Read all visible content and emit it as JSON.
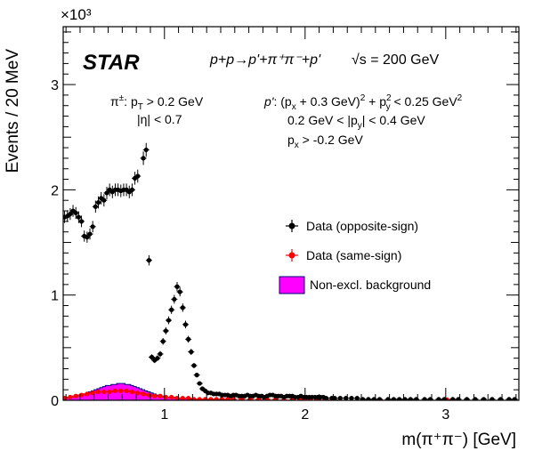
{
  "chart_data": {
    "type": "scatter",
    "experiment_label": "STAR",
    "process_label": "p+p→p'+π⁺π⁻+p'",
    "sqrt_s_label": "√s = 200 GeV",
    "pion_cuts": [
      "π±:  p_T > 0.2 GeV",
      "|η| < 0.7"
    ],
    "proton_cuts": [
      "p': (p_x + 0.3 GeV)² + p_y² < 0.25 GeV²",
      "0.2 GeV < |p_y| < 0.4 GeV",
      "p_x > -0.2 GeV"
    ],
    "xlabel": "m(π⁺π⁻) [GeV]",
    "ylabel": "Events / 20 MeV",
    "y_multiplier_label": "×10³",
    "xlim": [
      0.28,
      3.52
    ],
    "ylim": [
      0,
      3.55
    ],
    "x_ticks": [
      1,
      2,
      3
    ],
    "y_ticks": [
      0,
      1,
      2,
      3
    ],
    "grid": false,
    "legend_position": "middle-right",
    "legend": [
      "Data (opposite-sign)",
      "Data (same-sign)",
      "Non-excl. background"
    ],
    "colors": {
      "opposite_sign": "#000000",
      "same_sign": "#ff0000",
      "background_fill": "#ff00ff",
      "background_edge": "#000080"
    },
    "series": [
      {
        "name": "Data (opposite-sign)",
        "points": [
          [
            0.29,
            1.74
          ],
          [
            0.31,
            1.75
          ],
          [
            0.33,
            1.77
          ],
          [
            0.35,
            1.8
          ],
          [
            0.37,
            1.78
          ],
          [
            0.39,
            1.74
          ],
          [
            0.41,
            1.7
          ],
          [
            0.43,
            1.56
          ],
          [
            0.45,
            1.55
          ],
          [
            0.47,
            1.58
          ],
          [
            0.49,
            1.65
          ],
          [
            0.51,
            1.84
          ],
          [
            0.53,
            1.88
          ],
          [
            0.55,
            1.92
          ],
          [
            0.57,
            1.9
          ],
          [
            0.59,
            1.97
          ],
          [
            0.61,
            2.0
          ],
          [
            0.63,
            1.98
          ],
          [
            0.65,
            2.0
          ],
          [
            0.67,
            2.0
          ],
          [
            0.69,
            1.99
          ],
          [
            0.71,
            2.0
          ],
          [
            0.73,
            2.0
          ],
          [
            0.75,
            1.98
          ],
          [
            0.77,
            2.0
          ],
          [
            0.79,
            2.11
          ],
          [
            0.81,
            2.13
          ],
          [
            0.85,
            2.3
          ],
          [
            0.87,
            2.38
          ],
          [
            0.89,
            1.33
          ],
          [
            0.91,
            0.41
          ],
          [
            0.93,
            0.38
          ],
          [
            0.95,
            0.4
          ],
          [
            0.97,
            0.44
          ],
          [
            0.99,
            0.56
          ],
          [
            1.01,
            0.66
          ],
          [
            1.03,
            0.76
          ],
          [
            1.05,
            0.86
          ],
          [
            1.07,
            0.96
          ],
          [
            1.09,
            1.08
          ],
          [
            1.11,
            1.03
          ],
          [
            1.13,
            0.88
          ],
          [
            1.15,
            0.72
          ],
          [
            1.17,
            0.58
          ],
          [
            1.19,
            0.46
          ],
          [
            1.21,
            0.33
          ],
          [
            1.23,
            0.24
          ],
          [
            1.25,
            0.16
          ],
          [
            1.27,
            0.11
          ],
          [
            1.29,
            0.09
          ],
          [
            1.31,
            0.07
          ],
          [
            1.33,
            0.07
          ],
          [
            1.35,
            0.06
          ],
          [
            1.37,
            0.06
          ],
          [
            1.39,
            0.06
          ],
          [
            1.41,
            0.05
          ],
          [
            1.43,
            0.05
          ],
          [
            1.45,
            0.05
          ],
          [
            1.47,
            0.04
          ],
          [
            1.49,
            0.05
          ],
          [
            1.51,
            0.05
          ],
          [
            1.53,
            0.04
          ],
          [
            1.55,
            0.04
          ],
          [
            1.57,
            0.04
          ],
          [
            1.59,
            0.05
          ],
          [
            1.61,
            0.04
          ],
          [
            1.63,
            0.04
          ],
          [
            1.65,
            0.05
          ],
          [
            1.67,
            0.04
          ],
          [
            1.69,
            0.04
          ],
          [
            1.71,
            0.03
          ],
          [
            1.73,
            0.04
          ],
          [
            1.75,
            0.05
          ],
          [
            1.77,
            0.05
          ],
          [
            1.79,
            0.04
          ],
          [
            1.81,
            0.04
          ],
          [
            1.83,
            0.04
          ],
          [
            1.85,
            0.03
          ],
          [
            1.87,
            0.04
          ],
          [
            1.89,
            0.04
          ],
          [
            1.91,
            0.04
          ],
          [
            1.93,
            0.03
          ],
          [
            1.95,
            0.03
          ],
          [
            1.97,
            0.04
          ],
          [
            1.99,
            0.03
          ],
          [
            2.01,
            0.03
          ],
          [
            2.03,
            0.03
          ],
          [
            2.05,
            0.03
          ],
          [
            2.07,
            0.03
          ],
          [
            2.09,
            0.03
          ],
          [
            2.11,
            0.03
          ],
          [
            2.13,
            0.03
          ],
          [
            2.15,
            0.02
          ],
          [
            2.19,
            0.02
          ],
          [
            2.21,
            0.02
          ],
          [
            2.25,
            0.02
          ],
          [
            2.29,
            0.02
          ],
          [
            2.33,
            0.02
          ],
          [
            2.37,
            0.02
          ],
          [
            2.41,
            0.01
          ],
          [
            2.45,
            0.01
          ],
          [
            2.49,
            0.01
          ],
          [
            2.53,
            0.01
          ],
          [
            2.59,
            0.01
          ],
          [
            2.63,
            0.01
          ],
          [
            2.67,
            0.01
          ],
          [
            2.71,
            0.01
          ],
          [
            2.75,
            0.01
          ],
          [
            2.79,
            0.01
          ],
          [
            2.85,
            0.01
          ],
          [
            2.89,
            0.01
          ],
          [
            2.95,
            0.01
          ],
          [
            2.99,
            0.01
          ],
          [
            3.05,
            0.01
          ],
          [
            3.09,
            0.01
          ],
          [
            3.15,
            0.01
          ],
          [
            3.21,
            0.01
          ],
          [
            3.27,
            0.01
          ],
          [
            3.33,
            0.01
          ],
          [
            3.39,
            0.01
          ],
          [
            3.45,
            0.01
          ],
          [
            3.49,
            0.01
          ]
        ]
      },
      {
        "name": "Data (same-sign)",
        "points": [
          [
            0.29,
            0.02
          ],
          [
            0.33,
            0.03
          ],
          [
            0.37,
            0.04
          ],
          [
            0.41,
            0.05
          ],
          [
            0.45,
            0.06
          ],
          [
            0.49,
            0.07
          ],
          [
            0.53,
            0.08
          ],
          [
            0.57,
            0.08
          ],
          [
            0.61,
            0.08
          ],
          [
            0.65,
            0.09
          ],
          [
            0.69,
            0.09
          ],
          [
            0.73,
            0.09
          ],
          [
            0.77,
            0.08
          ],
          [
            0.81,
            0.07
          ],
          [
            0.85,
            0.06
          ],
          [
            0.89,
            0.05
          ],
          [
            0.93,
            0.04
          ],
          [
            0.97,
            0.04
          ],
          [
            1.01,
            0.03
          ],
          [
            1.05,
            0.03
          ],
          [
            1.09,
            0.02
          ],
          [
            1.13,
            0.02
          ],
          [
            1.17,
            0.02
          ],
          [
            1.21,
            0.01
          ],
          [
            1.25,
            0.01
          ],
          [
            1.29,
            0.01
          ],
          [
            1.33,
            0.01
          ],
          [
            1.37,
            0.01
          ],
          [
            1.41,
            0.01
          ],
          [
            1.45,
            0.01
          ],
          [
            1.49,
            0.01
          ],
          [
            1.55,
            0.01
          ],
          [
            1.61,
            0.01
          ],
          [
            1.67,
            0.01
          ],
          [
            1.73,
            0.01
          ],
          [
            1.79,
            0.01
          ],
          [
            1.85,
            0.005
          ],
          [
            1.91,
            0.005
          ],
          [
            1.97,
            0.005
          ],
          [
            2.03,
            0.005
          ],
          [
            2.09,
            0.005
          ],
          [
            2.15,
            0.005
          ],
          [
            2.21,
            0.005
          ],
          [
            2.53,
            0.005
          ],
          [
            3.01,
            0.005
          ]
        ]
      },
      {
        "name": "Non-excl. background",
        "bins": [
          [
            0.28,
            0.02
          ],
          [
            0.3,
            0.03
          ],
          [
            0.32,
            0.03
          ],
          [
            0.34,
            0.04
          ],
          [
            0.36,
            0.04
          ],
          [
            0.38,
            0.05
          ],
          [
            0.4,
            0.06
          ],
          [
            0.42,
            0.06
          ],
          [
            0.44,
            0.07
          ],
          [
            0.46,
            0.08
          ],
          [
            0.48,
            0.09
          ],
          [
            0.5,
            0.1
          ],
          [
            0.52,
            0.11
          ],
          [
            0.54,
            0.12
          ],
          [
            0.56,
            0.13
          ],
          [
            0.58,
            0.14
          ],
          [
            0.6,
            0.14
          ],
          [
            0.62,
            0.15
          ],
          [
            0.64,
            0.15
          ],
          [
            0.66,
            0.16
          ],
          [
            0.68,
            0.16
          ],
          [
            0.7,
            0.16
          ],
          [
            0.72,
            0.15
          ],
          [
            0.74,
            0.15
          ],
          [
            0.76,
            0.14
          ],
          [
            0.78,
            0.13
          ],
          [
            0.8,
            0.12
          ],
          [
            0.82,
            0.11
          ],
          [
            0.84,
            0.1
          ],
          [
            0.86,
            0.09
          ],
          [
            0.88,
            0.08
          ],
          [
            0.9,
            0.07
          ],
          [
            0.92,
            0.06
          ],
          [
            0.94,
            0.05
          ],
          [
            0.96,
            0.05
          ],
          [
            0.98,
            0.04
          ],
          [
            1.0,
            0.04
          ],
          [
            1.02,
            0.03
          ],
          [
            1.04,
            0.03
          ],
          [
            1.06,
            0.03
          ],
          [
            1.08,
            0.02
          ],
          [
            1.1,
            0.02
          ],
          [
            1.12,
            0.02
          ],
          [
            1.14,
            0.02
          ],
          [
            1.16,
            0.015
          ],
          [
            1.18,
            0.015
          ],
          [
            1.2,
            0.01
          ],
          [
            1.22,
            0.01
          ],
          [
            1.24,
            0.01
          ],
          [
            1.26,
            0.01
          ],
          [
            1.28,
            0.008
          ],
          [
            1.3,
            0.008
          ],
          [
            1.32,
            0.006
          ],
          [
            1.34,
            0.006
          ],
          [
            1.36,
            0.005
          ],
          [
            1.38,
            0.005
          ],
          [
            1.4,
            0.004
          ],
          [
            1.42,
            0.004
          ],
          [
            1.44,
            0.003
          ],
          [
            1.46,
            0.003
          ],
          [
            1.48,
            0.002
          ]
        ]
      }
    ]
  }
}
